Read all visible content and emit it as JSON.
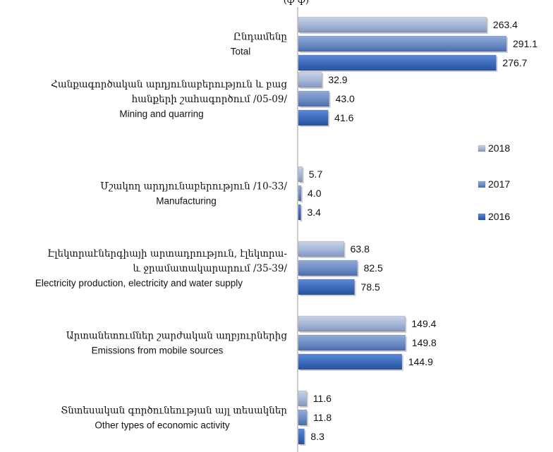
{
  "chart_data": {
    "type": "bar",
    "orientation": "horizontal",
    "title": "(ֆ  ֆ)",
    "legend_position": "right",
    "grid": false,
    "xlim": [
      0,
      310
    ],
    "categories": [
      [
        "Ընդամենը",
        "Total"
      ],
      [
        "Հանքագործական արդյունաբերություն և բաց",
        "հանքերի շահագործում /05-09/",
        "Mining and quarring"
      ],
      [
        "Մշակող արդյունաբերություն /10-33/",
        "Manufacturing"
      ],
      [
        "Էլեկտրաէներգիայի արտադրություն, էլեկտրա-",
        "և ջրամատակարարում /35-39/",
        "Electricity production, electricity and water supply"
      ],
      [
        "Արտանետումներ շարժական աղբյուրներից",
        "Emissions from mobile sources"
      ],
      [
        "Տնտեսական գործունեության այլ տեսակներ",
        "Other types of economic activity"
      ]
    ],
    "series": [
      {
        "name": "2018",
        "values": [
          263.4,
          32.9,
          5.7,
          63.8,
          149.4,
          11.6
        ],
        "labels": [
          "263.4",
          "32.9",
          "5.7",
          "63.8",
          "149.4",
          "11.6"
        ],
        "color": "#a8b8d8"
      },
      {
        "name": "2017",
        "values": [
          291.1,
          43.0,
          4.0,
          82.5,
          149.8,
          11.8
        ],
        "labels": [
          "291.1",
          "43.0",
          "4.0",
          "82.5",
          "149.8",
          "11.8"
        ],
        "color": "#6f8fc8"
      },
      {
        "name": "2016",
        "values": [
          276.7,
          41.6,
          3.4,
          78.5,
          144.9,
          8.3
        ],
        "labels": [
          "276.7",
          "41.6",
          "3.4",
          "78.5",
          "144.9",
          "8.3"
        ],
        "color": "#3d6dbf"
      }
    ]
  }
}
